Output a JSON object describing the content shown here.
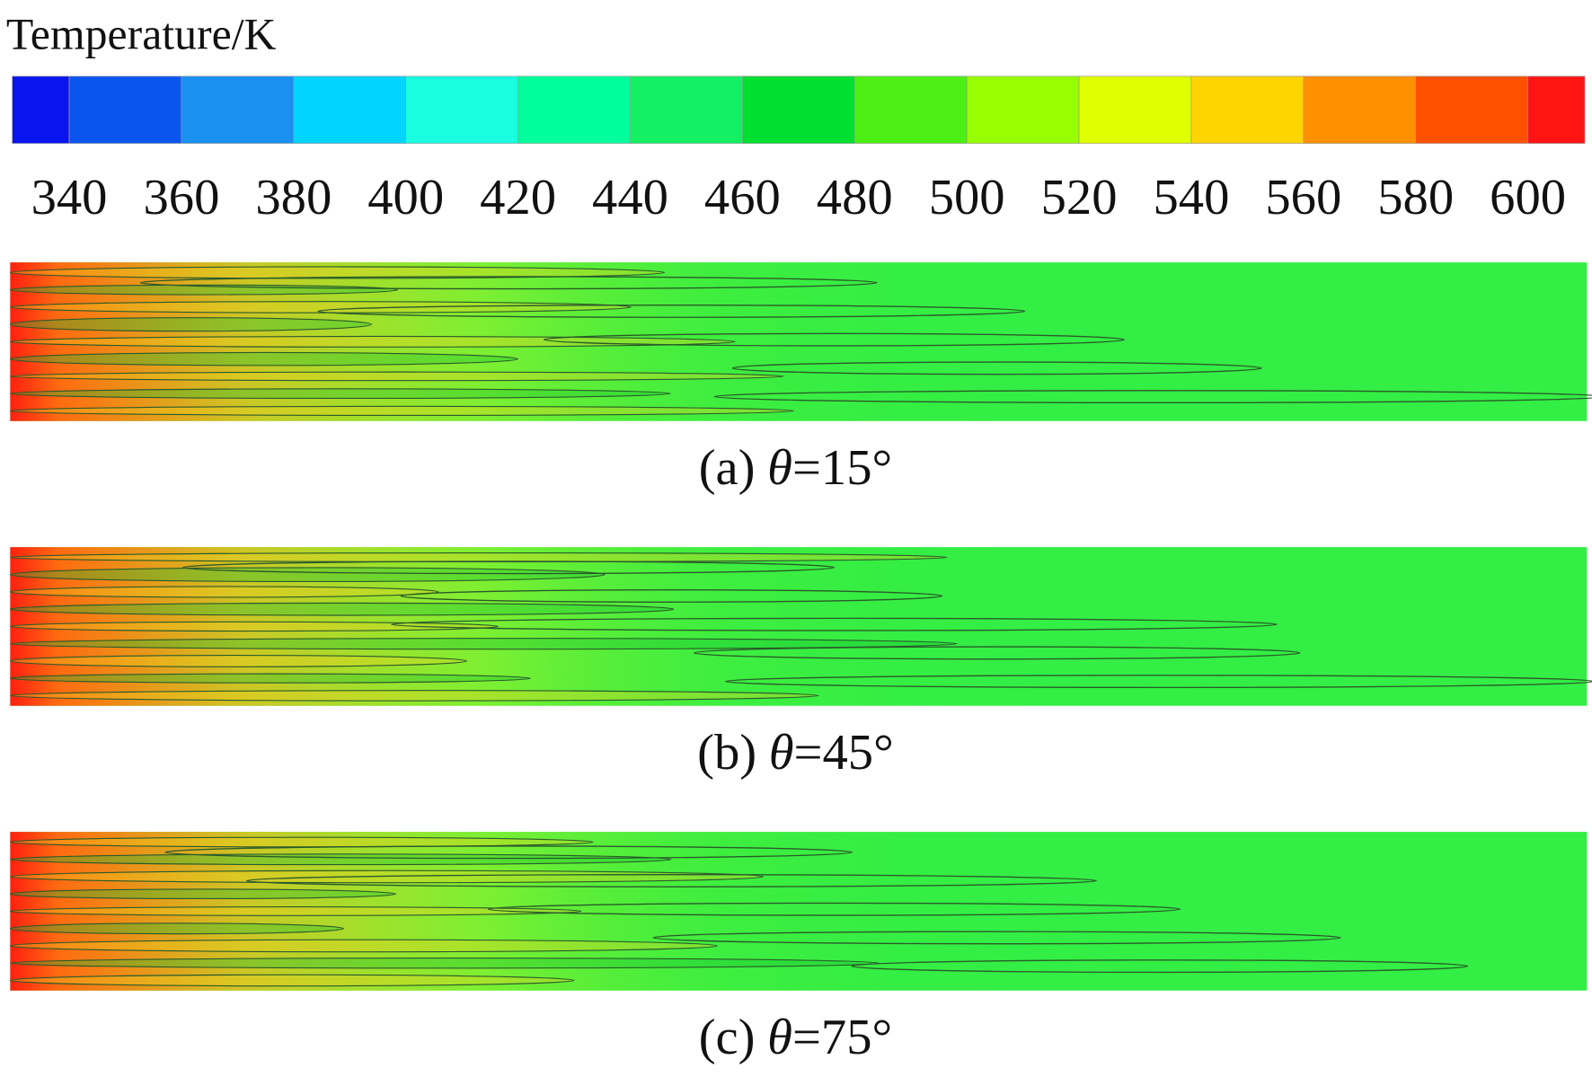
{
  "colorbar": {
    "title": "Temperature/K",
    "ticks": [
      340,
      360,
      380,
      400,
      420,
      440,
      460,
      480,
      500,
      520,
      540,
      560,
      580,
      600
    ],
    "colors": [
      "#0a14ee",
      "#0a55f0",
      "#1a90f0",
      "#00d4ff",
      "#1affe0",
      "#00ff9c",
      "#14f064",
      "#00e030",
      "#4cf014",
      "#98ff00",
      "#e0ff00",
      "#ffd400",
      "#ff9000",
      "#ff5000",
      "#ff1414"
    ]
  },
  "panels": [
    {
      "label": "(a)",
      "symbol": "θ",
      "value": "=15°"
    },
    {
      "label": "(b)",
      "symbol": "θ",
      "value": "=45°"
    },
    {
      "label": "(c)",
      "symbol": "θ",
      "value": "=75°"
    }
  ]
}
